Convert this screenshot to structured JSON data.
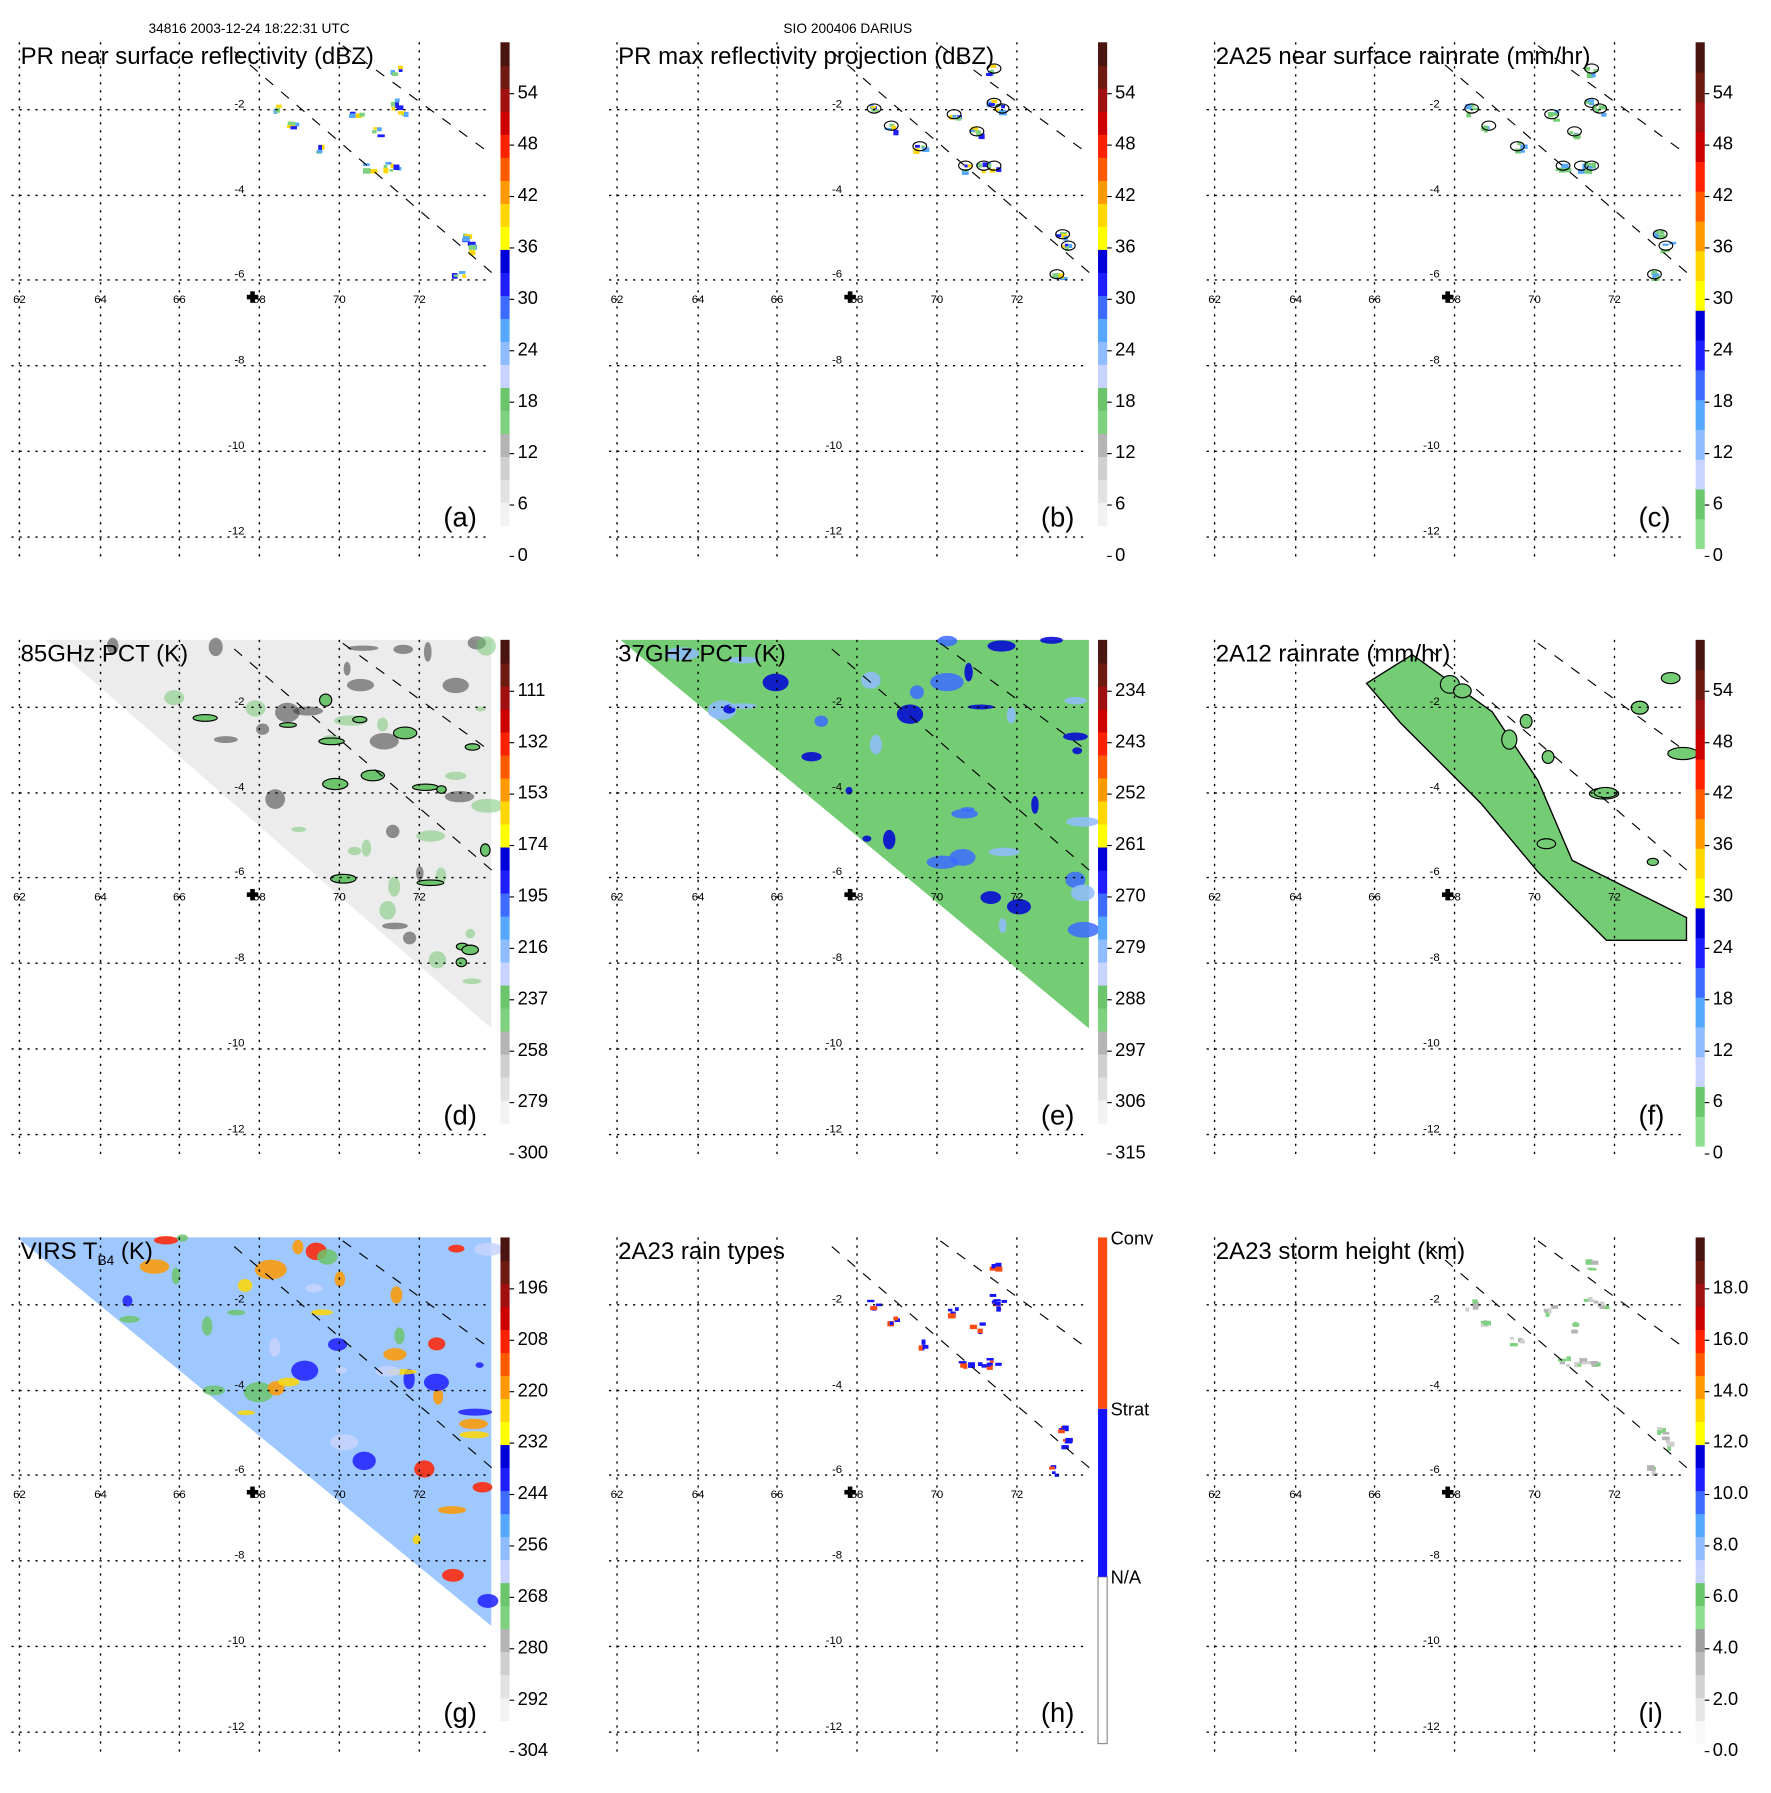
{
  "header": {
    "left": "34816 2003-12-24 18:22:31 UTC",
    "center": "SIO 200406 DARIUS"
  },
  "axes": {
    "lon_ticks": [
      "62",
      "64",
      "66",
      "68",
      "70",
      "72"
    ],
    "lat_ticks": [
      "-2",
      "-4",
      "-6",
      "-8",
      "-10",
      "-12"
    ],
    "marker": "cross-icon"
  },
  "palettes": {
    "dbz": [
      "#ffffff",
      "#f2f2f2",
      "#e2e2e2",
      "#cfcfcf",
      "#b4b4b4",
      "#7ed17e",
      "#6cc46c",
      "#c8d4ff",
      "#8fbcff",
      "#56a8ff",
      "#3d6bff",
      "#1e1eff",
      "#0000d8",
      "#ffff00",
      "#ffd700",
      "#ff9900",
      "#ff5a00",
      "#ff2200",
      "#cc0000",
      "#a01010",
      "#6e1a10",
      "#4a1410"
    ],
    "rain": [
      "#8ee08e",
      "#6cc86c",
      "#c8d4ff",
      "#8fbcff",
      "#56a8ff",
      "#3d6bff",
      "#1e1eff",
      "#0000d8",
      "#ffff00",
      "#ffd700",
      "#ff9900",
      "#ff5a00",
      "#ff2200",
      "#cc0000",
      "#a01010",
      "#6e1a10",
      "#4a1410"
    ],
    "height": [
      "#f8f8f8",
      "#e6e6e6",
      "#d2d2d2",
      "#bcbcbc",
      "#a0a0a0",
      "#8ee08e",
      "#6cc86c",
      "#c8d4ff",
      "#8fbcff",
      "#56a8ff",
      "#3d6bff",
      "#1e1eff",
      "#0000d8",
      "#ffff00",
      "#ffd700",
      "#ff9900",
      "#ff5a00",
      "#ff2200",
      "#cc0000",
      "#a01010",
      "#6e1a10",
      "#4a1410"
    ],
    "raintype": [
      "#ffffff",
      "#1414ff",
      "#ff4a10"
    ]
  },
  "chart_data": [
    {
      "type": "heatmap",
      "id": "a",
      "title": "PR near surface reflectivity (dBZ)",
      "letter": "(a)",
      "palette": "dbz",
      "field": "swath",
      "colorbar_ticks": [
        "0",
        "6",
        "12",
        "18",
        "24",
        "30",
        "36",
        "42",
        "48",
        "54"
      ],
      "xlabel": "lon",
      "ylabel": "lat",
      "xlim": [
        61.9,
        74
      ],
      "ylim": [
        -13,
        0
      ]
    },
    {
      "type": "heatmap",
      "id": "b",
      "title": "PR max reflectivity projection (dBZ)",
      "letter": "(b)",
      "palette": "dbz",
      "field": "swath",
      "colorbar_ticks": [
        "0",
        "6",
        "12",
        "18",
        "24",
        "30",
        "36",
        "42",
        "48",
        "54"
      ],
      "xlim": [
        61.9,
        74
      ],
      "ylim": [
        -13,
        0
      ]
    },
    {
      "type": "heatmap",
      "id": "c",
      "title": "2A25 near surface rainrate (mm/hr)",
      "letter": "(c)",
      "palette": "rain",
      "field": "swath",
      "colorbar_ticks": [
        "0",
        "6",
        "12",
        "18",
        "24",
        "30",
        "36",
        "42",
        "48",
        "54"
      ],
      "xlim": [
        61.9,
        74
      ],
      "ylim": [
        -13,
        0
      ]
    },
    {
      "type": "heatmap",
      "id": "d",
      "title": "85GHz PCT (K)",
      "letter": "(d)",
      "palette": "dbz",
      "field": "tri-gray",
      "colorbar_ticks": [
        "300",
        "279",
        "258",
        "237",
        "216",
        "195",
        "174",
        "153",
        "132",
        "111"
      ],
      "xlim": [
        61.9,
        74
      ],
      "ylim": [
        -13,
        0
      ]
    },
    {
      "type": "heatmap",
      "id": "e",
      "title": "37GHz PCT (K)",
      "letter": "(e)",
      "palette": "dbz",
      "field": "tri-green",
      "colorbar_ticks": [
        "315",
        "306",
        "297",
        "288",
        "279",
        "270",
        "261",
        "252",
        "243",
        "234"
      ],
      "xlim": [
        61.9,
        74
      ],
      "ylim": [
        -13,
        0
      ]
    },
    {
      "type": "heatmap",
      "id": "f",
      "title": "2A12 rainrate (mm/hr)",
      "letter": "(f)",
      "palette": "rain",
      "field": "band-green",
      "colorbar_ticks": [
        "0",
        "6",
        "12",
        "18",
        "24",
        "30",
        "36",
        "42",
        "48",
        "54"
      ],
      "xlim": [
        61.9,
        74
      ],
      "ylim": [
        -13,
        0
      ]
    },
    {
      "type": "heatmap",
      "id": "g",
      "title": "VIRS T",
      "title_sub": "B4",
      "title_end": " (K)",
      "letter": "(g)",
      "palette": "dbz",
      "field": "tri-ir",
      "colorbar_ticks": [
        "304",
        "292",
        "280",
        "268",
        "256",
        "244",
        "232",
        "220",
        "208",
        "196"
      ],
      "xlim": [
        61.9,
        74
      ],
      "ylim": [
        -13,
        0
      ]
    },
    {
      "type": "heatmap",
      "id": "h",
      "title": "2A23 rain types",
      "letter": "(h)",
      "palette": "raintype",
      "field": "swath-type",
      "colorbar_ticks": [
        "N/A",
        "Strat",
        "Conv"
      ],
      "xlim": [
        61.9,
        74
      ],
      "ylim": [
        -13,
        0
      ]
    },
    {
      "type": "heatmap",
      "id": "i",
      "title": "2A23 storm height (km)",
      "letter": "(i)",
      "palette": "height",
      "field": "swath-height",
      "colorbar_ticks": [
        "0.0",
        "2.0",
        "4.0",
        "6.0",
        "8.0",
        "10.0",
        "12.0",
        "14.0",
        "16.0",
        "18.0"
      ],
      "xlim": [
        61.9,
        74
      ],
      "ylim": [
        -13,
        0
      ]
    }
  ]
}
